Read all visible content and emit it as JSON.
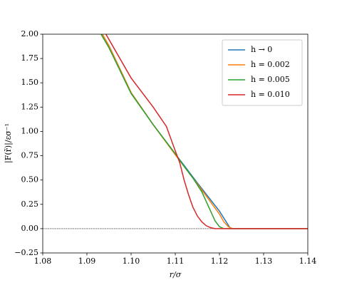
{
  "chart_data": {
    "type": "line",
    "xlabel": "r/σ",
    "ylabel": "|F(r̃)|/εσ⁻¹",
    "xlim": [
      1.08,
      1.14
    ],
    "ylim": [
      -0.25,
      2.0
    ],
    "xticks": [
      1.08,
      1.09,
      {
        "value": 1.1,
        "label": "1.10"
      },
      1.11,
      1.12,
      1.13,
      1.14
    ],
    "yticks": [
      {
        "value": -0.25,
        "label": "−0.25"
      },
      {
        "value": 0,
        "label": "0.00"
      },
      0.25,
      {
        "value": 0.5,
        "label": "0.50"
      },
      0.75,
      {
        "value": 1,
        "label": "1.00"
      },
      1.25,
      {
        "value": 1.5,
        "label": "1.50"
      },
      1.75,
      {
        "value": 2,
        "label": "2.00"
      }
    ],
    "hline": 0,
    "legend": "upper right",
    "series": [
      {
        "name": "h → 0",
        "color": "#1f77b4",
        "x": [
          1.0935,
          1.095,
          1.1,
          1.105,
          1.11,
          1.115,
          1.12,
          1.1225,
          1.14
        ],
        "values": [
          2.0,
          1.88,
          1.4,
          1.07,
          0.77,
          0.47,
          0.18,
          0.0,
          0.0
        ]
      },
      {
        "name": "h = 0.002",
        "color": "#ff7f0e",
        "x": [
          1.0935,
          1.095,
          1.1,
          1.105,
          1.11,
          1.115,
          1.12,
          1.121,
          1.122,
          1.123,
          1.14
        ],
        "values": [
          2.0,
          1.88,
          1.4,
          1.07,
          0.76,
          0.46,
          0.15,
          0.07,
          0.02,
          0.0,
          0.0
        ]
      },
      {
        "name": "h = 0.005",
        "color": "#2ca02c",
        "x": [
          1.0932,
          1.095,
          1.1,
          1.105,
          1.11,
          1.112,
          1.114,
          1.116,
          1.118,
          1.119,
          1.12,
          1.121,
          1.14
        ],
        "values": [
          2.0,
          1.86,
          1.39,
          1.07,
          0.77,
          0.64,
          0.52,
          0.38,
          0.18,
          0.08,
          0.02,
          0.0,
          0.0
        ]
      },
      {
        "name": "h = 0.010",
        "color": "#d62728",
        "x": [
          1.0943,
          1.1,
          1.105,
          1.108,
          1.11,
          1.111,
          1.112,
          1.113,
          1.114,
          1.115,
          1.116,
          1.117,
          1.118,
          1.119,
          1.14
        ],
        "values": [
          2.0,
          1.55,
          1.25,
          1.05,
          0.8,
          0.68,
          0.5,
          0.35,
          0.22,
          0.13,
          0.07,
          0.03,
          0.01,
          0.0,
          0.0
        ]
      }
    ]
  }
}
